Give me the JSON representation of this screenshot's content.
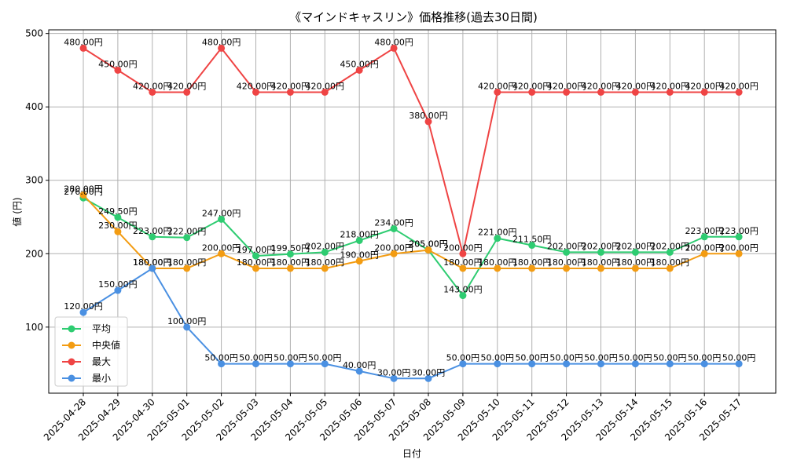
{
  "chart_data": {
    "type": "line",
    "title": "《マインドキャスリン》価格推移(過去30日間)",
    "xlabel": "日付",
    "ylabel": "値 (円)",
    "ylim": [
      10,
      505
    ],
    "yticks": [
      100,
      200,
      300,
      400,
      500
    ],
    "grid": true,
    "legend_position": "lower-left",
    "value_label_suffix": "円",
    "categories": [
      "2025-04-28",
      "2025-04-29",
      "2025-04-30",
      "2025-05-01",
      "2025-05-02",
      "2025-05-03",
      "2025-05-04",
      "2025-05-05",
      "2025-05-06",
      "2025-05-07",
      "2025-05-08",
      "2025-05-09",
      "2025-05-10",
      "2025-05-11",
      "2025-05-12",
      "2025-05-13",
      "2025-05-14",
      "2025-05-15",
      "2025-05-16",
      "2025-05-17"
    ],
    "series": [
      {
        "name": "平均",
        "color": "#2ecc71",
        "values": [
          276,
          249.5,
          223,
          222,
          247,
          197,
          199.5,
          202,
          218,
          234,
          205,
          143,
          221,
          211.5,
          202,
          202,
          202,
          202,
          223,
          223
        ]
      },
      {
        "name": "中央値",
        "color": "#f39c12",
        "values": [
          280,
          230,
          180,
          180,
          200,
          180,
          180,
          180,
          190,
          200,
          205,
          180,
          180,
          180,
          180,
          180,
          180,
          180,
          200,
          200
        ]
      },
      {
        "name": "最大",
        "color": "#ef4444",
        "values": [
          480,
          450,
          420,
          420,
          480,
          420,
          420,
          420,
          450,
          480,
          380,
          200,
          420,
          420,
          420,
          420,
          420,
          420,
          420,
          420
        ]
      },
      {
        "name": "最小",
        "color": "#4a90e2",
        "values": [
          120,
          150,
          180,
          100,
          50,
          50,
          50,
          50,
          40,
          30,
          30,
          50,
          50,
          50,
          50,
          50,
          50,
          50,
          50,
          50
        ]
      }
    ]
  }
}
